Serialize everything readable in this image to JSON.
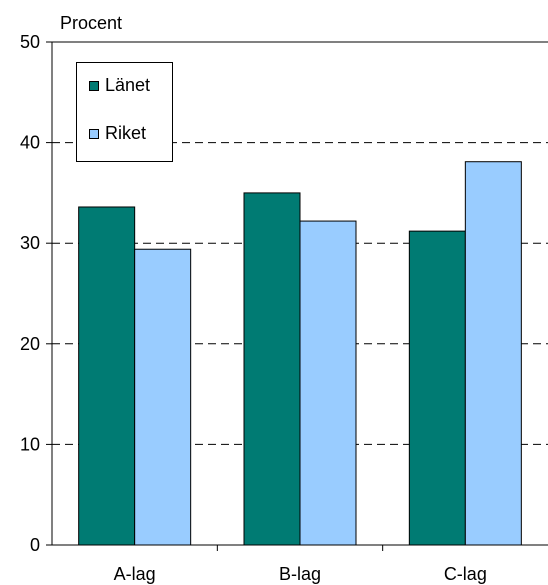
{
  "chart_data": {
    "type": "bar",
    "ylabel": "Procent",
    "categories": [
      "A-lag",
      "B-lag",
      "C-lag"
    ],
    "series": [
      {
        "name": "Länet",
        "values": [
          33.6,
          35.0,
          31.2
        ],
        "color": "#007b73"
      },
      {
        "name": "Riket",
        "values": [
          29.4,
          32.2,
          38.1
        ],
        "color": "#99ccff"
      }
    ],
    "ylim": [
      0,
      50
    ],
    "yticks": [
      0,
      10,
      20,
      30,
      40,
      50
    ],
    "grid": "dashed",
    "legend": "top-left"
  }
}
